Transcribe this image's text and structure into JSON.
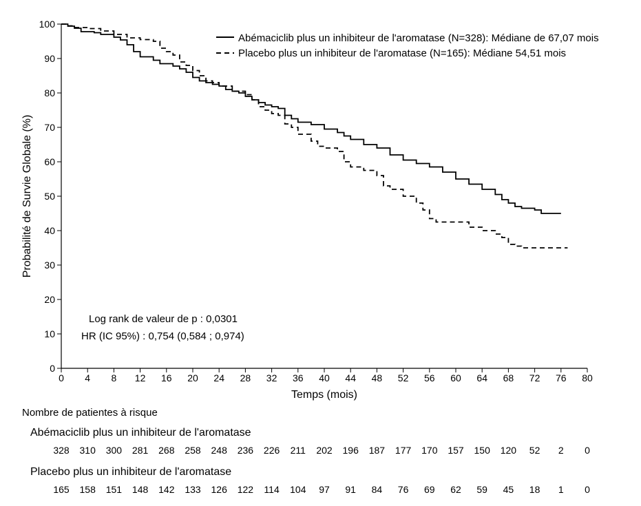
{
  "chart_data": {
    "type": "line",
    "title": "",
    "xlabel": "Temps (mois)",
    "ylabel": "Probabilité de Survie Globale (%)",
    "xlim": [
      0,
      80
    ],
    "ylim": [
      0,
      100
    ],
    "x_ticks": [
      0,
      4,
      8,
      12,
      16,
      20,
      24,
      28,
      32,
      36,
      40,
      44,
      48,
      52,
      56,
      60,
      64,
      68,
      72,
      76,
      80
    ],
    "y_ticks": [
      0,
      10,
      20,
      30,
      40,
      50,
      60,
      70,
      80,
      90,
      100
    ],
    "grid": false,
    "legend_position": "top-right",
    "series": [
      {
        "name": "Abémaciclib plus un inhibiteur de l'aromatase (N=328): Médiane de 67,07 mois",
        "style": "solid",
        "color": "#000000",
        "points": [
          [
            0,
            100
          ],
          [
            1,
            99.4
          ],
          [
            2,
            98.8
          ],
          [
            3,
            97.8
          ],
          [
            5,
            97.5
          ],
          [
            6,
            97
          ],
          [
            8,
            96.2
          ],
          [
            9,
            95.4
          ],
          [
            10,
            94
          ],
          [
            11,
            92
          ],
          [
            12,
            90.5
          ],
          [
            14,
            89.5
          ],
          [
            15,
            88.5
          ],
          [
            17,
            87.8
          ],
          [
            18,
            87
          ],
          [
            19,
            86
          ],
          [
            20,
            84.5
          ],
          [
            21,
            83.5
          ],
          [
            22,
            83
          ],
          [
            23,
            82.5
          ],
          [
            24,
            82
          ],
          [
            25,
            81
          ],
          [
            26,
            80.5
          ],
          [
            27,
            80
          ],
          [
            28,
            79
          ],
          [
            29,
            78
          ],
          [
            30,
            77.2
          ],
          [
            31,
            76.5
          ],
          [
            32,
            76
          ],
          [
            33,
            75.5
          ],
          [
            34,
            73.5
          ],
          [
            35,
            72.5
          ],
          [
            36,
            71.5
          ],
          [
            38,
            70.8
          ],
          [
            40,
            69.5
          ],
          [
            42,
            68.5
          ],
          [
            43,
            67.5
          ],
          [
            44,
            66.5
          ],
          [
            46,
            65
          ],
          [
            48,
            64
          ],
          [
            50,
            62
          ],
          [
            52,
            60.5
          ],
          [
            54,
            59.5
          ],
          [
            56,
            58.5
          ],
          [
            58,
            57
          ],
          [
            60,
            55
          ],
          [
            62,
            53.5
          ],
          [
            64,
            52
          ],
          [
            66,
            50.5
          ],
          [
            67,
            49
          ],
          [
            68,
            48
          ],
          [
            69,
            47
          ],
          [
            70,
            46.5
          ],
          [
            72,
            46
          ],
          [
            73,
            45
          ],
          [
            76,
            45
          ]
        ]
      },
      {
        "name": "Placebo plus un inhibiteur de l'aromatase (N=165): Médiane 54,51 mois",
        "style": "dashed",
        "color": "#000000",
        "points": [
          [
            0,
            100
          ],
          [
            1,
            99.5
          ],
          [
            2,
            99
          ],
          [
            4,
            98.7
          ],
          [
            6,
            98
          ],
          [
            8,
            97
          ],
          [
            10,
            96
          ],
          [
            12,
            95.5
          ],
          [
            14,
            95
          ],
          [
            15,
            93
          ],
          [
            16,
            92
          ],
          [
            17,
            91
          ],
          [
            18,
            89
          ],
          [
            19,
            88
          ],
          [
            20,
            86.5
          ],
          [
            21,
            85
          ],
          [
            22,
            83.5
          ],
          [
            23,
            83
          ],
          [
            24,
            82
          ],
          [
            26,
            80.5
          ],
          [
            28,
            79.5
          ],
          [
            29,
            78
          ],
          [
            30,
            76
          ],
          [
            31,
            75
          ],
          [
            32,
            74
          ],
          [
            33,
            73.5
          ],
          [
            34,
            71
          ],
          [
            35,
            70
          ],
          [
            36,
            68
          ],
          [
            38,
            66
          ],
          [
            39,
            64.5
          ],
          [
            40,
            64
          ],
          [
            42,
            63
          ],
          [
            43,
            60
          ],
          [
            44,
            58.5
          ],
          [
            46,
            57.5
          ],
          [
            48,
            56
          ],
          [
            49,
            53
          ],
          [
            50,
            52
          ],
          [
            52,
            50
          ],
          [
            54,
            48
          ],
          [
            55,
            46
          ],
          [
            56,
            43.5
          ],
          [
            57,
            42.5
          ],
          [
            60,
            42.5
          ],
          [
            62,
            41
          ],
          [
            64,
            40
          ],
          [
            66,
            39
          ],
          [
            67,
            38
          ],
          [
            68,
            36
          ],
          [
            69,
            35.5
          ],
          [
            70,
            35
          ],
          [
            77,
            35
          ]
        ]
      }
    ],
    "annotations": [
      "Log rank de valeur de p : 0,0301",
      "HR (IC 95%) : 0,754 (0,584 ; 0,974)"
    ]
  },
  "risk_table": {
    "title": "Nombre de patientes à risque",
    "time_points": [
      0,
      4,
      8,
      12,
      16,
      20,
      24,
      28,
      32,
      36,
      40,
      44,
      48,
      52,
      56,
      60,
      64,
      68,
      72,
      76,
      80
    ],
    "rows": [
      {
        "label": "Abémaciclib plus un inhibiteur de l'aromatase",
        "values": [
          "328",
          "310",
          "300",
          "281",
          "268",
          "258",
          "248",
          "236",
          "226",
          "211",
          "202",
          "196",
          "187",
          "177",
          "170",
          "157",
          "150",
          "120",
          "52",
          "2",
          "0"
        ]
      },
      {
        "label": "Placebo plus un inhibiteur de l'aromatase",
        "values": [
          "165",
          "158",
          "151",
          "148",
          "142",
          "133",
          "126",
          "122",
          "114",
          "104",
          "97",
          "91",
          "84",
          "76",
          "69",
          "62",
          "59",
          "45",
          "18",
          "1",
          "0"
        ]
      }
    ]
  }
}
